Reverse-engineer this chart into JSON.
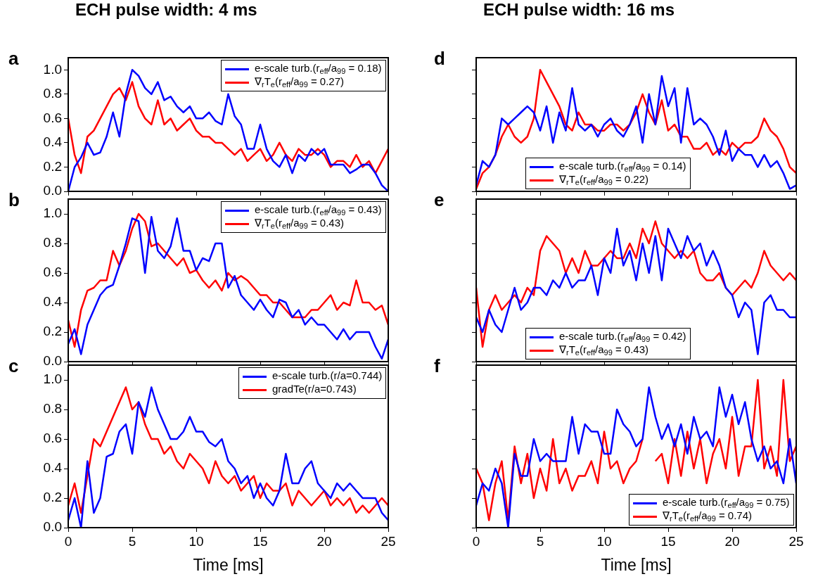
{
  "chart_data": [
    {
      "type": "line",
      "title": "ECH pulse width: 4 ms",
      "annotations": [
        "a"
      ],
      "legend": "top right",
      "tick_labels": "y",
      "xlim": [
        0,
        25
      ],
      "xticks": [
        0,
        5,
        10,
        15,
        20,
        25
      ],
      "ylim": [
        0,
        1.1
      ],
      "yticks": [
        {
          "value": 0,
          "label": "0.0"
        },
        {
          "value": 0.2,
          "label": "0.2"
        },
        {
          "value": 0.4,
          "label": "0.4"
        },
        {
          "value": 0.6,
          "label": "0.6"
        },
        {
          "value": 0.8,
          "label": "0.8"
        },
        {
          "value": 1,
          "label": "1.0"
        }
      ],
      "x": [
        0,
        0.5,
        1,
        1.5,
        2,
        2.5,
        3,
        3.5,
        4,
        4.5,
        5,
        5.5,
        6,
        6.5,
        7,
        7.5,
        8,
        8.5,
        9,
        9.5,
        10,
        10.5,
        11,
        11.5,
        12,
        12.5,
        13,
        13.5,
        14,
        14.5,
        15,
        15.5,
        16,
        16.5,
        17,
        17.5,
        18,
        18.5,
        19,
        19.5,
        20,
        20.5,
        21,
        21.5,
        22,
        22.5,
        23,
        23.5,
        24,
        24.5,
        25
      ],
      "series": [
        {
          "name": "e-scale turb.(r$_{eff}$/a$_{99}$ = 0.18)",
          "color": "#0000ff",
          "values": [
            0,
            0.2,
            0.28,
            0.4,
            0.3,
            0.32,
            0.45,
            0.65,
            0.45,
            0.8,
            1.0,
            0.95,
            0.85,
            0.8,
            0.9,
            0.75,
            0.78,
            0.7,
            0.65,
            0.7,
            0.6,
            0.6,
            0.65,
            0.58,
            0.55,
            0.8,
            0.62,
            0.55,
            0.35,
            0.35,
            0.55,
            0.35,
            0.25,
            0.2,
            0.3,
            0.15,
            0.3,
            0.25,
            0.35,
            0.3,
            0.35,
            0.22,
            0.22,
            0.22,
            0.15,
            0.18,
            0.22,
            0.22,
            0.15,
            0.05,
            0
          ]
        },
        {
          "name": "∇$_{r}$T$_{e}$(r$_{eff}$/a$_{99}$ = 0.27)",
          "color": "#ff0000",
          "values": [
            0.6,
            0.3,
            0.15,
            0.45,
            0.5,
            0.6,
            0.7,
            0.8,
            0.85,
            0.75,
            0.9,
            0.7,
            0.6,
            0.55,
            0.75,
            0.55,
            0.6,
            0.5,
            0.55,
            0.6,
            0.5,
            0.45,
            0.45,
            0.4,
            0.4,
            0.35,
            0.3,
            0.35,
            0.25,
            0.3,
            0.35,
            0.25,
            0.3,
            0.4,
            0.3,
            0.25,
            0.35,
            0.3,
            0.3,
            0.35,
            0.3,
            0.2,
            0.25,
            0.25,
            0.2,
            0.3,
            0.2,
            0.25,
            0.15,
            0.25,
            0.35
          ]
        }
      ]
    },
    {
      "type": "line",
      "annotations": [
        "b"
      ],
      "legend": "top right",
      "tick_labels": "y",
      "xlim": [
        0,
        25
      ],
      "xticks": [
        0,
        5,
        10,
        15,
        20,
        25
      ],
      "ylim": [
        0,
        1.1
      ],
      "yticks": [
        {
          "value": 0,
          "label": "0.0"
        },
        {
          "value": 0.2,
          "label": "0.2"
        },
        {
          "value": 0.4,
          "label": "0.4"
        },
        {
          "value": 0.6,
          "label": "0.6"
        },
        {
          "value": 0.8,
          "label": "0.8"
        },
        {
          "value": 1,
          "label": "1.0"
        }
      ],
      "x": [
        0,
        0.5,
        1,
        1.5,
        2,
        2.5,
        3,
        3.5,
        4,
        4.5,
        5,
        5.5,
        6,
        6.5,
        7,
        7.5,
        8,
        8.5,
        9,
        9.5,
        10,
        10.5,
        11,
        11.5,
        12,
        12.5,
        13,
        13.5,
        14,
        14.5,
        15,
        15.5,
        16,
        16.5,
        17,
        17.5,
        18,
        18.5,
        19,
        19.5,
        20,
        20.5,
        21,
        21.5,
        22,
        22.5,
        23,
        23.5,
        24,
        24.5,
        25
      ],
      "series": [
        {
          "name": "e-scale turb.(r$_{eff}$/a$_{99}$ = 0.43)",
          "color": "#0000ff",
          "values": [
            0.12,
            0.22,
            0.05,
            0.25,
            0.35,
            0.45,
            0.5,
            0.52,
            0.65,
            0.8,
            0.97,
            0.95,
            0.6,
            0.98,
            0.75,
            0.7,
            0.78,
            0.97,
            0.75,
            0.75,
            0.62,
            0.7,
            0.68,
            0.8,
            0.8,
            0.5,
            0.58,
            0.45,
            0.4,
            0.35,
            0.42,
            0.35,
            0.3,
            0.42,
            0.4,
            0.3,
            0.35,
            0.25,
            0.3,
            0.25,
            0.25,
            0.2,
            0.15,
            0.22,
            0.15,
            0.2,
            0.2,
            0.2,
            0.1,
            0.02,
            0.15
          ]
        },
        {
          "name": "∇$_{r}$T$_{e}$(r$_{eff}$/a$_{99}$ = 0.43)",
          "color": "#ff0000",
          "values": [
            0.28,
            0.1,
            0.35,
            0.48,
            0.5,
            0.55,
            0.55,
            0.75,
            0.65,
            0.75,
            0.9,
            1.0,
            0.95,
            0.78,
            0.8,
            0.75,
            0.7,
            0.65,
            0.7,
            0.6,
            0.62,
            0.55,
            0.5,
            0.55,
            0.48,
            0.6,
            0.55,
            0.58,
            0.55,
            0.5,
            0.45,
            0.45,
            0.4,
            0.4,
            0.35,
            0.3,
            0.3,
            0.3,
            0.35,
            0.35,
            0.4,
            0.45,
            0.35,
            0.4,
            0.38,
            0.55,
            0.4,
            0.4,
            0.35,
            0.38,
            0.25
          ]
        }
      ]
    },
    {
      "type": "line",
      "annotations": [
        "c"
      ],
      "xlabel": "Time [ms]",
      "legend": "top right",
      "xlim": [
        0,
        25
      ],
      "xticks": [
        0,
        5,
        10,
        15,
        20,
        25
      ],
      "ylim": [
        0,
        1.1
      ],
      "yticks": [
        {
          "value": 0,
          "label": "0.0"
        },
        {
          "value": 0.2,
          "label": "0.2"
        },
        {
          "value": 0.4,
          "label": "0.4"
        },
        {
          "value": 0.6,
          "label": "0.6"
        },
        {
          "value": 0.8,
          "label": "0.8"
        },
        {
          "value": 1,
          "label": "1.0"
        }
      ],
      "x": [
        0,
        0.5,
        1,
        1.5,
        2,
        2.5,
        3,
        3.5,
        4,
        4.5,
        5,
        5.5,
        6,
        6.5,
        7,
        7.5,
        8,
        8.5,
        9,
        9.5,
        10,
        10.5,
        11,
        11.5,
        12,
        12.5,
        13,
        13.5,
        14,
        14.5,
        15,
        15.5,
        16,
        16.5,
        17,
        17.5,
        18,
        18.5,
        19,
        19.5,
        20,
        20.5,
        21,
        21.5,
        22,
        22.5,
        23,
        23.5,
        24,
        24.5,
        25
      ],
      "series": [
        {
          "name": "e-scale turb.(r/a=0.744)",
          "color": "#0000ff",
          "values": [
            0.05,
            0.2,
            0,
            0.45,
            0.1,
            0.2,
            0.48,
            0.5,
            0.65,
            0.7,
            0.5,
            0.85,
            0.75,
            0.95,
            0.8,
            0.7,
            0.6,
            0.6,
            0.65,
            0.75,
            0.65,
            0.65,
            0.58,
            0.55,
            0.6,
            0.45,
            0.4,
            0.3,
            0.35,
            0.2,
            0.3,
            0.2,
            0.15,
            0.25,
            0.5,
            0.3,
            0.3,
            0.4,
            0.45,
            0.3,
            0.25,
            0.2,
            0.3,
            0.25,
            0.3,
            0.25,
            0.2,
            0.2,
            0.2,
            0.1,
            0.05
          ]
        },
        {
          "name": "gradTe(r/a=0.743)",
          "color": "#ff0000",
          "values": [
            0.15,
            0.3,
            0.1,
            0.35,
            0.6,
            0.55,
            0.65,
            0.75,
            0.85,
            0.95,
            0.8,
            0.85,
            0.7,
            0.6,
            0.6,
            0.5,
            0.55,
            0.45,
            0.4,
            0.5,
            0.45,
            0.4,
            0.3,
            0.45,
            0.35,
            0.3,
            0.35,
            0.25,
            0.3,
            0.35,
            0.2,
            0.3,
            0.25,
            0.25,
            0.3,
            0.15,
            0.25,
            0.2,
            0.15,
            0.2,
            0.25,
            0.15,
            0.2,
            0.15,
            0.2,
            0.1,
            0.15,
            0.1,
            0.15,
            0.2,
            0.15
          ]
        }
      ]
    },
    {
      "type": "line",
      "title": "ECH pulse width: 16 ms",
      "annotations": [
        "d"
      ],
      "legend": "bottom",
      "tick_labels": false,
      "xlim": [
        0,
        25
      ],
      "xticks": [
        0,
        5,
        10,
        15,
        20,
        25
      ],
      "ylim": [
        0,
        1.1
      ],
      "yticks": [
        {
          "value": 0,
          "label": null
        },
        {
          "value": 0.2,
          "label": null
        },
        {
          "value": 0.4,
          "label": null
        },
        {
          "value": 0.6,
          "label": null
        },
        {
          "value": 0.8,
          "label": null
        },
        {
          "value": 1,
          "label": null
        }
      ],
      "x": [
        0,
        0.5,
        1,
        1.5,
        2,
        2.5,
        3,
        3.5,
        4,
        4.5,
        5,
        5.5,
        6,
        6.5,
        7,
        7.5,
        8,
        8.5,
        9,
        9.5,
        10,
        10.5,
        11,
        11.5,
        12,
        12.5,
        13,
        13.5,
        14,
        14.5,
        15,
        15.5,
        16,
        16.5,
        17,
        17.5,
        18,
        18.5,
        19,
        19.5,
        20,
        20.5,
        21,
        21.5,
        22,
        22.5,
        23,
        23.5,
        24,
        24.5,
        25
      ],
      "series": [
        {
          "name": "e-scale turb.(r$_{eff}$/a$_{99}$ = 0.14)",
          "color": "#0000ff",
          "values": [
            0.05,
            0.25,
            0.2,
            0.3,
            0.6,
            0.55,
            0.6,
            0.65,
            0.7,
            0.65,
            0.5,
            0.7,
            0.4,
            0.65,
            0.5,
            0.85,
            0.55,
            0.5,
            0.55,
            0.45,
            0.55,
            0.6,
            0.5,
            0.45,
            0.55,
            0.7,
            0.4,
            0.8,
            0.55,
            0.95,
            0.7,
            0.85,
            0.4,
            0.85,
            0.55,
            0.6,
            0.55,
            0.45,
            0.3,
            0.5,
            0.25,
            0.35,
            0.3,
            0.3,
            0.2,
            0.3,
            0.2,
            0.25,
            0.15,
            0.02,
            0.05
          ]
        },
        {
          "name": "∇$_{r}$T$_{e}$(r$_{eff}$/a$_{99}$ = 0.22)",
          "color": "#ff0000",
          "values": [
            0.02,
            0.15,
            0.2,
            0.3,
            0.45,
            0.55,
            0.45,
            0.4,
            0.45,
            0.6,
            1.0,
            0.9,
            0.8,
            0.7,
            0.55,
            0.5,
            0.65,
            0.55,
            0.55,
            0.5,
            0.5,
            0.55,
            0.55,
            0.5,
            0.55,
            0.65,
            0.8,
            0.65,
            0.55,
            0.75,
            0.5,
            0.55,
            0.45,
            0.45,
            0.35,
            0.35,
            0.4,
            0.3,
            0.35,
            0.3,
            0.4,
            0.35,
            0.4,
            0.4,
            0.45,
            0.6,
            0.5,
            0.45,
            0.35,
            0.2,
            0.15
          ]
        }
      ]
    },
    {
      "type": "line",
      "annotations": [
        "e"
      ],
      "legend": "bottom",
      "tick_labels": false,
      "xlim": [
        0,
        25
      ],
      "xticks": [
        0,
        5,
        10,
        15,
        20,
        25
      ],
      "ylim": [
        0,
        1.1
      ],
      "yticks": [
        {
          "value": 0,
          "label": null
        },
        {
          "value": 0.2,
          "label": null
        },
        {
          "value": 0.4,
          "label": null
        },
        {
          "value": 0.6,
          "label": null
        },
        {
          "value": 0.8,
          "label": null
        },
        {
          "value": 1,
          "label": null
        }
      ],
      "x": [
        0,
        0.5,
        1,
        1.5,
        2,
        2.5,
        3,
        3.5,
        4,
        4.5,
        5,
        5.5,
        6,
        6.5,
        7,
        7.5,
        8,
        8.5,
        9,
        9.5,
        10,
        10.5,
        11,
        11.5,
        12,
        12.5,
        13,
        13.5,
        14,
        14.5,
        15,
        15.5,
        16,
        16.5,
        17,
        17.5,
        18,
        18.5,
        19,
        19.5,
        20,
        20.5,
        21,
        21.5,
        22,
        22.5,
        23,
        23.5,
        24,
        24.5,
        25
      ],
      "series": [
        {
          "name": "e-scale turb.(r$_{eff}$/a$_{99}$ = 0.42)",
          "color": "#0000ff",
          "values": [
            0.3,
            0.2,
            0.35,
            0.25,
            0.2,
            0.35,
            0.5,
            0.35,
            0.4,
            0.5,
            0.5,
            0.45,
            0.55,
            0.5,
            0.6,
            0.5,
            0.55,
            0.55,
            0.65,
            0.45,
            0.7,
            0.6,
            0.9,
            0.65,
            0.75,
            0.55,
            0.8,
            0.6,
            0.85,
            0.55,
            0.9,
            0.8,
            0.7,
            0.85,
            0.75,
            0.8,
            0.65,
            0.75,
            0.65,
            0.5,
            0.45,
            0.3,
            0.4,
            0.35,
            0.05,
            0.4,
            0.45,
            0.35,
            0.35,
            0.3,
            0.3
          ]
        },
        {
          "name": "∇$_{r}$T$_{e}$(r$_{eff}$/a$_{99}$ = 0.43)",
          "color": "#ff0000",
          "values": [
            0.5,
            0.1,
            0.35,
            0.45,
            0.35,
            0.4,
            0.45,
            0.4,
            0.5,
            0.45,
            0.75,
            0.85,
            0.8,
            0.75,
            0.6,
            0.7,
            0.6,
            0.75,
            0.65,
            0.65,
            0.7,
            0.75,
            0.7,
            0.7,
            0.8,
            0.7,
            0.9,
            0.8,
            0.95,
            0.8,
            0.75,
            0.7,
            0.75,
            0.7,
            0.75,
            0.6,
            0.55,
            0.55,
            0.6,
            0.5,
            0.45,
            0.5,
            0.55,
            0.5,
            0.6,
            0.75,
            0.65,
            0.6,
            0.55,
            0.6,
            0.55
          ]
        }
      ]
    },
    {
      "type": "line",
      "annotations": [
        "f"
      ],
      "xlabel": "Time [ms]",
      "legend": "bottom right",
      "tick_labels": "x",
      "xlim": [
        0,
        25
      ],
      "xticks": [
        0,
        5,
        10,
        15,
        20,
        25
      ],
      "ylim": [
        0,
        1.1
      ],
      "yticks": [
        {
          "value": 0,
          "label": null
        },
        {
          "value": 0.2,
          "label": null
        },
        {
          "value": 0.4,
          "label": null
        },
        {
          "value": 0.6,
          "label": null
        },
        {
          "value": 0.8,
          "label": null
        },
        {
          "value": 1,
          "label": null
        }
      ],
      "x": [
        0,
        0.5,
        1,
        1.5,
        2,
        2.5,
        3,
        3.5,
        4,
        4.5,
        5,
        5.5,
        6,
        6.5,
        7,
        7.5,
        8,
        8.5,
        9,
        9.5,
        10,
        10.5,
        11,
        11.5,
        12,
        12.5,
        13,
        13.5,
        14,
        14.5,
        15,
        15.5,
        16,
        16.5,
        17,
        17.5,
        18,
        18.5,
        19,
        19.5,
        20,
        20.5,
        21,
        21.5,
        22,
        22.5,
        23,
        23.5,
        24,
        24.5,
        25
      ],
      "series": [
        {
          "name": "e-scale turb.(r$_{eff}$/a$_{99}$ = 0.75)",
          "color": "#0000ff",
          "values": [
            0.15,
            0.3,
            0.25,
            0.4,
            0.3,
            0,
            0.5,
            0.35,
            0.35,
            0.6,
            0.45,
            0.5,
            0.45,
            0.45,
            0.45,
            0.75,
            0.5,
            0.7,
            0.65,
            0.65,
            0.5,
            0.5,
            0.8,
            0.7,
            0.65,
            0.55,
            0.6,
            0.95,
            0.75,
            0.6,
            0.7,
            0.55,
            0.7,
            0.5,
            0.75,
            0.6,
            0.65,
            0.55,
            0.95,
            0.75,
            0.9,
            0.7,
            0.85,
            0.6,
            0.45,
            0.55,
            0.4,
            0.45,
            0.3,
            0.6,
            0.3
          ]
        },
        {
          "name": "∇$_{r}$T$_{e}$(r$_{eff}$/a$_{99}$ = 0.74)",
          "color": "#ff0000",
          "values": [
            0.4,
            0.3,
            0.05,
            0.3,
            0.45,
            0.05,
            0.55,
            0.3,
            0.5,
            0.2,
            0.4,
            0.25,
            0.6,
            0.3,
            0.4,
            0.25,
            0.35,
            0.35,
            0.45,
            0.3,
            0.65,
            0.4,
            0.45,
            0.3,
            0.4,
            0.45,
            0.6,
            null,
            0.45,
            0.5,
            0.3,
            0.6,
            0.35,
            0.65,
            0.4,
            0.6,
            0.3,
            0.5,
            0.6,
            0.4,
            0.75,
            0.35,
            0.55,
            0.55,
            1.0,
            0.4,
            0.55,
            0.35,
            1.0,
            0.45,
            0.55
          ]
        }
      ]
    }
  ]
}
